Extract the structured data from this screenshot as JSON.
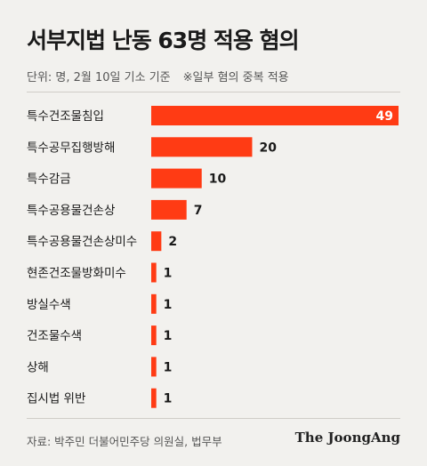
{
  "header": {
    "title": "서부지법 난동 63명 적용 혐의",
    "subtitle": "단위: 명, 2월 10일 기소 기준",
    "note": "※일부 혐의 중복 적용"
  },
  "footer": {
    "source": "자료: 박주민 더불어민주당 의원실, 법무부",
    "logo": "The JoongAng"
  },
  "colors": {
    "bar": "#ff3b14",
    "background": "#f2f1ee",
    "bar_label_inside": "#ffffff",
    "text": "#1a1a1a"
  },
  "chart_data": {
    "type": "bar",
    "orientation": "horizontal",
    "categories": [
      "특수건조물침입",
      "특수공무집행방해",
      "특수감금",
      "특수공용물건손상",
      "특수공용물건손상미수",
      "현존건조물방화미수",
      "방실수색",
      "건조물수색",
      "상해",
      "집시법 위반"
    ],
    "values": [
      49,
      20,
      10,
      7,
      2,
      1,
      1,
      1,
      1,
      1
    ],
    "xlim": [
      0,
      49
    ],
    "grid": false,
    "legend": "none"
  }
}
